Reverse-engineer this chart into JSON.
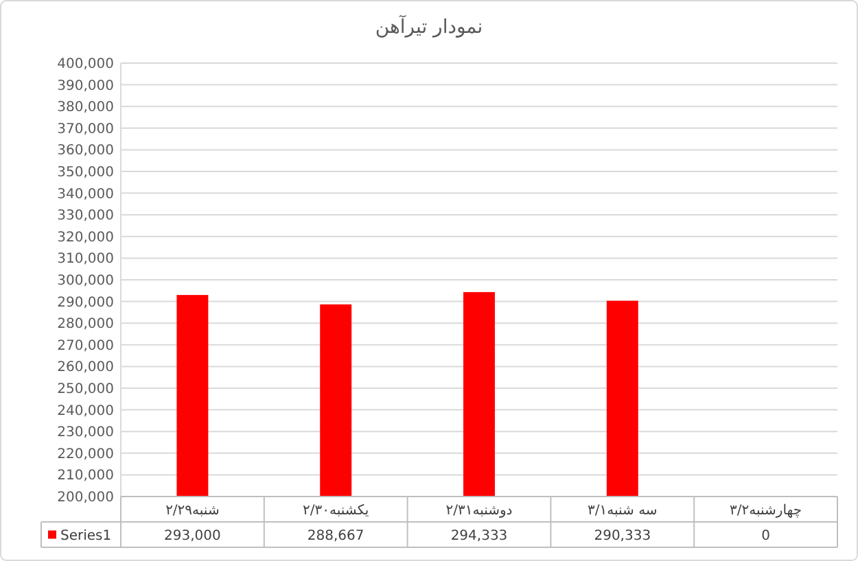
{
  "chart_data": {
    "type": "bar",
    "title": "نمودار تیرآهن",
    "categories": [
      "شنبه۲/۲۹",
      "یکشنبه۲/۳۰",
      "دوشنبه۲/۳۱",
      "سه شنبه۳/۱",
      "چهارشنبه۳/۲"
    ],
    "series": [
      {
        "name": "Series1",
        "color": "#ff0000",
        "values": [
          293000,
          288667,
          294333,
          290333,
          null
        ],
        "value_labels": [
          "293,000",
          "288,667",
          "294,333",
          "290,333",
          "0"
        ]
      }
    ],
    "ylim": [
      200000,
      400000
    ],
    "yticks": [
      {
        "value": 200000,
        "label": "200,000"
      },
      {
        "value": 210000,
        "label": "210,000"
      },
      {
        "value": 220000,
        "label": "220,000"
      },
      {
        "value": 230000,
        "label": "230,000"
      },
      {
        "value": 240000,
        "label": "240,000"
      },
      {
        "value": 250000,
        "label": "250,000"
      },
      {
        "value": 260000,
        "label": "260,000"
      },
      {
        "value": 270000,
        "label": "270,000"
      },
      {
        "value": 280000,
        "label": "280,000"
      },
      {
        "value": 290000,
        "label": "290,000"
      },
      {
        "value": 300000,
        "label": "300,000"
      },
      {
        "value": 310000,
        "label": "310,000"
      },
      {
        "value": 320000,
        "label": "320,000"
      },
      {
        "value": 330000,
        "label": "330,000"
      },
      {
        "value": 340000,
        "label": "340,000"
      },
      {
        "value": 350000,
        "label": "350,000"
      },
      {
        "value": 360000,
        "label": "360,000"
      },
      {
        "value": 370000,
        "label": "370,000"
      },
      {
        "value": 380000,
        "label": "380,000"
      },
      {
        "value": 390000,
        "label": "390,000"
      },
      {
        "value": 400000,
        "label": "400,000"
      }
    ],
    "grid": "y",
    "legend": "bottom"
  }
}
